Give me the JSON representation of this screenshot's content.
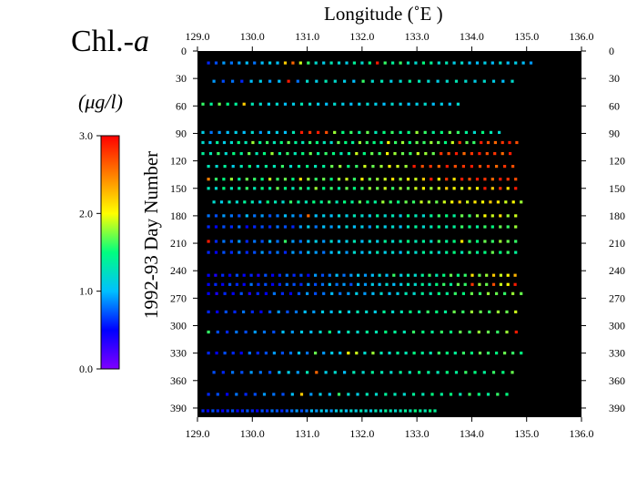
{
  "figure": {
    "title_prefix": "Chl.-",
    "title_suffix": "a",
    "unit_label": "(μg/l)",
    "x_title": "Longitude (˚E )",
    "y_title": "1992-93  Day  Number"
  },
  "colorbar": {
    "ticks": [
      "0.0",
      "1.0",
      "2.0",
      "3.0"
    ],
    "tick_values": [
      0,
      1,
      2,
      3
    ],
    "range": [
      0,
      3
    ],
    "colors": [
      "#8000ff",
      "#0000ff",
      "#00c0ff",
      "#00ff80",
      "#ffff00",
      "#ff8000",
      "#ff0000"
    ]
  },
  "chart_data": {
    "type": "scatter",
    "title": "Chl.-a",
    "xlabel": "Longitude (˚E )",
    "ylabel": "1992-93  Day  Number",
    "colorbar_label": "(μg/l)",
    "xlim": [
      129.0,
      136.0
    ],
    "ylim": [
      0,
      400
    ],
    "y_inverted": true,
    "plot_background": "#000000",
    "grid": false,
    "x_ticks": [
      "129.0",
      "130.0",
      "131.0",
      "132.0",
      "133.0",
      "134.0",
      "135.0",
      "136.0"
    ],
    "x_tick_values": [
      129,
      130,
      131,
      132,
      133,
      134,
      135,
      136
    ],
    "y_ticks": [
      "0",
      "30",
      "60",
      "90",
      "120",
      "150",
      "180",
      "210",
      "240",
      "270",
      "300",
      "330",
      "360",
      "390"
    ],
    "y_tick_values": [
      0,
      30,
      60,
      90,
      120,
      150,
      180,
      210,
      240,
      270,
      300,
      330,
      360,
      390
    ],
    "color_scale": {
      "min": 0.0,
      "max": 3.0
    },
    "cruises": [
      {
        "day": 13,
        "lon_start": 129.2,
        "lon_end": 135.1,
        "lon_step": 0.14,
        "values": [
          0.6,
          0.7,
          0.9,
          0.8,
          0.9,
          1.0,
          0.8,
          1.0,
          1.1,
          1.0,
          2.2,
          2.6,
          1.9,
          1.6,
          1.2,
          1.1,
          1.3,
          1.2,
          1.1,
          1.4,
          1.2,
          1.5,
          2.9,
          1.6,
          1.4,
          1.6,
          1.3,
          1.2,
          1.5,
          1.4,
          1.2,
          1.3,
          1.1,
          1.2,
          1.0,
          1.0,
          1.1,
          1.0,
          1.2,
          1.0,
          1.1,
          1.0,
          0.9
        ]
      },
      {
        "day": 33,
        "lon_start": 129.3,
        "lon_end": 134.9,
        "lon_step": 0.17,
        "values": [
          0.9,
          0.7,
          0.8,
          0.6,
          1.0,
          1.1,
          0.9,
          1.0,
          2.9,
          0.8,
          1.2,
          1.1,
          1.3,
          1.2,
          1.1,
          1.0,
          1.6,
          1.2,
          1.3,
          1.1,
          1.2,
          1.4,
          1.3,
          1.2,
          1.1,
          1.2,
          1.3,
          1.2,
          1.1,
          1.2,
          1.1,
          1.0,
          1.2
        ]
      },
      {
        "day": 58,
        "lon_start": 129.1,
        "lon_end": 133.8,
        "lon_step": 0.15,
        "values": [
          1.6,
          1.4,
          1.7,
          1.5,
          1.4,
          2.2,
          1.3,
          1.2,
          1.1,
          1.2,
          1.0,
          1.1,
          1.3,
          1.2,
          1.1,
          1.0,
          1.2,
          1.1,
          1.0,
          1.1,
          1.2,
          1.1,
          1.0,
          1.2,
          1.1,
          1.0,
          1.1,
          1.2,
          1.0,
          1.1,
          1.0,
          1.2
        ]
      },
      {
        "day": 89,
        "lon_start": 129.1,
        "lon_end": 134.5,
        "lon_step": 0.15,
        "values": [
          1.1,
          0.8,
          0.9,
          1.0,
          1.1,
          1.0,
          1.2,
          0.9,
          1.0,
          1.1,
          1.0,
          1.3,
          2.9,
          2.8,
          2.9,
          2.7,
          1.8,
          1.5,
          1.6,
          1.4,
          1.7,
          1.3,
          1.5,
          1.6,
          1.4,
          1.5,
          1.8,
          1.6,
          1.4,
          1.5,
          1.7,
          1.6,
          1.4,
          1.2,
          1.5,
          1.3,
          1.2
        ]
      },
      {
        "day": 100,
        "lon_start": 129.1,
        "lon_end": 134.9,
        "lon_step": 0.13,
        "values": [
          1.2,
          1.0,
          1.4,
          1.1,
          1.2,
          1.5,
          1.3,
          1.8,
          1.4,
          1.6,
          1.3,
          1.5,
          1.7,
          1.4,
          1.3,
          1.6,
          1.5,
          1.3,
          1.2,
          1.7,
          1.5,
          1.4,
          1.8,
          1.6,
          1.5,
          1.4,
          2.0,
          1.6,
          1.8,
          1.5,
          1.7,
          1.6,
          1.8,
          1.7,
          1.5,
          1.9,
          2.8,
          1.7,
          1.6,
          2.9,
          2.7,
          2.6,
          2.8,
          2.9,
          2.7,
          2.8
        ]
      },
      {
        "day": 112,
        "lon_start": 129.1,
        "lon_end": 134.8,
        "lon_step": 0.14,
        "values": [
          1.4,
          1.3,
          1.6,
          1.2,
          1.5,
          1.4,
          1.7,
          1.3,
          1.5,
          1.8,
          1.4,
          1.6,
          1.3,
          1.5,
          1.7,
          1.4,
          1.6,
          1.5,
          1.3,
          1.4,
          1.9,
          1.5,
          1.7,
          1.6,
          2.0,
          1.8,
          1.7,
          1.6,
          1.9,
          1.8,
          1.7,
          2.8,
          2.7,
          2.9,
          2.6,
          2.8,
          2.9,
          2.7,
          2.8,
          2.6,
          2.9,
          2.7
        ]
      },
      {
        "day": 126,
        "lon_start": 129.2,
        "lon_end": 134.9,
        "lon_step": 0.15,
        "values": [
          1.3,
          1.2,
          1.4,
          1.1,
          1.3,
          1.5,
          1.2,
          1.4,
          1.3,
          1.6,
          1.2,
          1.4,
          1.5,
          1.3,
          1.4,
          1.7,
          1.8,
          1.5,
          1.6,
          1.9,
          1.7,
          1.8,
          2.0,
          1.9,
          1.8,
          2.9,
          2.7,
          2.8,
          2.6,
          2.9,
          2.7,
          2.8,
          2.9,
          2.7,
          2.8,
          2.6,
          2.8,
          2.7
        ]
      },
      {
        "day": 140,
        "lon_start": 129.2,
        "lon_end": 134.9,
        "lon_step": 0.14,
        "values": [
          2.5,
          1.6,
          1.5,
          1.8,
          1.4,
          1.7,
          1.6,
          1.5,
          1.9,
          1.6,
          1.7,
          1.5,
          2.1,
          1.8,
          1.6,
          1.7,
          1.5,
          1.8,
          1.9,
          1.6,
          2.0,
          1.7,
          1.8,
          1.9,
          2.1,
          1.8,
          2.0,
          1.9,
          2.2,
          2.9,
          2.0,
          2.8,
          2.1,
          2.9,
          2.7,
          2.9,
          2.8,
          2.6,
          2.9,
          2.8,
          2.7,
          2.9
        ]
      },
      {
        "day": 150,
        "lon_start": 129.2,
        "lon_end": 134.9,
        "lon_step": 0.14,
        "values": [
          1.3,
          1.2,
          1.5,
          1.3,
          1.4,
          1.6,
          1.3,
          1.5,
          1.4,
          1.7,
          1.5,
          1.3,
          1.6,
          1.4,
          1.8,
          1.5,
          1.6,
          1.4,
          1.7,
          1.5,
          1.6,
          1.8,
          1.7,
          1.9,
          1.6,
          1.8,
          1.7,
          1.9,
          2.0,
          1.8,
          1.9,
          2.2,
          2.0,
          1.9,
          2.1,
          2.0,
          2.9,
          2.2,
          2.8,
          2.1,
          2.9,
          2.7
        ]
      },
      {
        "day": 165,
        "lon_start": 129.3,
        "lon_end": 134.9,
        "lon_step": 0.14,
        "values": [
          1.2,
          1.1,
          1.3,
          1.2,
          1.4,
          1.3,
          1.1,
          1.5,
          1.3,
          1.2,
          1.6,
          1.4,
          1.3,
          1.5,
          1.4,
          1.6,
          1.3,
          1.5,
          1.4,
          1.7,
          1.5,
          1.4,
          1.8,
          1.6,
          1.5,
          1.7,
          1.6,
          1.9,
          1.8,
          1.7,
          1.9,
          2.0,
          2.2,
          1.9,
          2.1,
          2.0,
          2.2,
          2.1,
          1.9,
          2.0,
          1.8
        ]
      },
      {
        "day": 180,
        "lon_start": 129.2,
        "lon_end": 134.9,
        "lon_step": 0.14,
        "values": [
          0.8,
          0.7,
          0.9,
          0.8,
          0.7,
          1.0,
          0.8,
          0.9,
          0.7,
          0.8,
          1.0,
          0.9,
          0.8,
          2.6,
          1.0,
          1.1,
          1.0,
          1.2,
          1.1,
          1.3,
          1.2,
          1.1,
          1.4,
          1.2,
          1.3,
          1.1,
          1.5,
          1.3,
          1.2,
          1.4,
          1.6,
          1.5,
          1.4,
          1.7,
          1.6,
          1.8,
          2.0,
          1.9,
          2.1,
          1.8,
          1.9,
          2.0
        ]
      },
      {
        "day": 192,
        "lon_start": 129.2,
        "lon_end": 134.9,
        "lon_step": 0.14,
        "values": [
          0.6,
          0.5,
          0.7,
          0.6,
          0.8,
          0.5,
          0.6,
          0.7,
          0.6,
          0.8,
          0.7,
          0.6,
          0.9,
          1.1,
          0.8,
          1.0,
          0.9,
          1.0,
          1.2,
          1.0,
          1.1,
          0.9,
          1.3,
          1.1,
          1.2,
          1.0,
          1.3,
          1.4,
          1.2,
          1.3,
          1.5,
          1.3,
          1.4,
          1.6,
          1.5,
          1.4,
          1.6,
          1.5,
          1.7,
          1.6,
          1.8,
          1.6
        ]
      },
      {
        "day": 208,
        "lon_start": 129.2,
        "lon_end": 134.9,
        "lon_step": 0.14,
        "values": [
          2.9,
          0.6,
          0.8,
          0.7,
          0.9,
          0.6,
          0.8,
          0.7,
          1.0,
          0.8,
          1.6,
          0.9,
          0.8,
          1.0,
          1.1,
          0.9,
          1.2,
          1.0,
          1.1,
          1.3,
          1.0,
          1.2,
          1.1,
          1.4,
          1.2,
          1.3,
          1.5,
          1.3,
          1.4,
          1.2,
          1.6,
          1.4,
          1.5,
          2.1,
          1.6,
          1.5,
          1.7,
          1.6,
          1.8,
          1.7,
          1.6,
          1.8
        ]
      },
      {
        "day": 220,
        "lon_start": 129.2,
        "lon_end": 134.9,
        "lon_step": 0.14,
        "values": [
          0.6,
          0.5,
          0.7,
          0.6,
          0.8,
          0.6,
          0.7,
          0.9,
          0.7,
          0.8,
          0.6,
          0.9,
          0.8,
          1.0,
          0.9,
          0.8,
          1.0,
          1.1,
          0.9,
          1.2,
          1.0,
          1.1,
          1.3,
          1.1,
          1.2,
          1.0,
          1.3,
          1.2,
          1.4,
          1.3,
          1.2,
          1.4,
          1.5,
          1.3,
          1.6,
          1.4,
          1.5,
          1.7,
          1.5,
          1.6,
          1.4,
          1.6
        ]
      },
      {
        "day": 245,
        "lon_start": 129.2,
        "lon_end": 134.9,
        "lon_step": 0.13,
        "values": [
          0.5,
          0.4,
          0.6,
          0.5,
          0.7,
          0.5,
          0.6,
          0.4,
          0.7,
          0.5,
          0.6,
          0.8,
          0.6,
          0.7,
          0.5,
          0.9,
          0.7,
          0.8,
          1.0,
          0.8,
          0.9,
          1.1,
          0.9,
          1.0,
          1.2,
          1.0,
          1.6,
          1.1,
          1.3,
          1.2,
          1.4,
          1.6,
          1.3,
          1.5,
          1.7,
          1.5,
          1.6,
          2.1,
          1.7,
          1.8,
          2.2,
          1.9,
          2.0,
          2.3,
          2.1,
          1.9
        ]
      },
      {
        "day": 255,
        "lon_start": 129.2,
        "lon_end": 134.9,
        "lon_step": 0.13,
        "values": [
          0.5,
          0.6,
          0.5,
          0.7,
          0.6,
          0.5,
          0.8,
          0.6,
          0.7,
          0.5,
          0.6,
          0.8,
          0.7,
          0.6,
          0.9,
          0.7,
          0.8,
          1.0,
          0.8,
          0.9,
          0.7,
          1.0,
          0.9,
          1.1,
          1.0,
          1.2,
          1.0,
          1.1,
          1.3,
          1.2,
          1.4,
          1.3,
          1.5,
          1.6,
          1.4,
          1.7,
          1.6,
          2.8,
          1.8,
          1.7,
          2.7,
          1.9,
          2.0,
          2.9,
          1.9,
          2.1
        ]
      },
      {
        "day": 265,
        "lon_start": 129.2,
        "lon_end": 134.9,
        "lon_step": 0.15,
        "values": [
          0.5,
          0.4,
          0.6,
          0.5,
          0.7,
          0.4,
          0.6,
          0.5,
          0.8,
          0.6,
          0.5,
          0.7,
          0.9,
          0.7,
          0.8,
          1.0,
          0.8,
          0.9,
          1.1,
          0.9,
          1.0,
          1.2,
          1.0,
          1.1,
          1.3,
          1.2,
          1.4,
          1.3,
          1.5,
          1.4,
          1.6,
          1.5,
          1.7,
          1.6,
          1.8,
          1.7,
          1.6,
          1.8,
          1.7
        ]
      },
      {
        "day": 285,
        "lon_start": 129.2,
        "lon_end": 134.9,
        "lon_step": 0.16,
        "values": [
          0.6,
          0.5,
          0.7,
          0.6,
          0.8,
          0.6,
          0.5,
          0.7,
          0.9,
          0.7,
          0.8,
          1.0,
          0.9,
          1.1,
          1.0,
          1.2,
          1.1,
          1.3,
          1.2,
          1.1,
          1.4,
          1.2,
          1.3,
          1.5,
          1.4,
          1.6,
          1.5,
          1.4,
          1.7,
          1.6,
          1.8,
          1.7,
          1.6,
          1.8,
          1.7,
          1.9,
          1.8
        ]
      },
      {
        "day": 307,
        "lon_start": 129.2,
        "lon_end": 134.9,
        "lon_step": 0.17,
        "values": [
          1.6,
          0.7,
          0.6,
          0.8,
          0.7,
          0.9,
          0.8,
          0.7,
          1.0,
          0.9,
          1.1,
          1.0,
          1.2,
          1.5,
          1.1,
          1.3,
          1.2,
          1.4,
          1.3,
          1.5,
          1.4,
          1.3,
          1.6,
          1.5,
          1.4,
          1.6,
          1.5,
          1.7,
          1.6,
          1.8,
          1.7,
          1.6,
          1.8,
          2.9,
          1.7
        ]
      },
      {
        "day": 330,
        "lon_start": 129.2,
        "lon_end": 134.9,
        "lon_step": 0.15,
        "values": [
          0.6,
          0.5,
          0.7,
          0.6,
          0.5,
          0.8,
          0.6,
          0.7,
          0.9,
          0.7,
          0.8,
          1.0,
          0.8,
          1.7,
          0.9,
          1.1,
          1.0,
          2.0,
          1.9,
          1.2,
          1.8,
          1.3,
          1.2,
          1.4,
          1.3,
          1.5,
          1.4,
          1.3,
          1.6,
          1.5,
          1.4,
          1.6,
          1.5,
          1.7,
          1.6,
          1.5,
          1.7,
          1.6,
          1.5
        ]
      },
      {
        "day": 351,
        "lon_start": 129.3,
        "lon_end": 134.9,
        "lon_step": 0.17,
        "values": [
          0.7,
          0.6,
          0.8,
          0.7,
          0.9,
          0.8,
          0.7,
          1.0,
          1.1,
          0.9,
          1.3,
          2.6,
          1.1,
          1.2,
          1.0,
          1.3,
          1.2,
          1.4,
          1.3,
          1.2,
          1.4,
          1.3,
          1.5,
          1.4,
          1.3,
          1.5,
          1.4,
          1.6,
          1.5,
          1.4,
          1.6,
          1.5,
          1.7,
          1.6
        ]
      },
      {
        "day": 375,
        "lon_start": 129.2,
        "lon_end": 134.8,
        "lon_step": 0.17,
        "values": [
          0.6,
          0.7,
          0.5,
          0.8,
          0.6,
          0.7,
          0.9,
          0.8,
          0.7,
          1.0,
          2.2,
          0.9,
          1.1,
          1.0,
          1.6,
          1.2,
          1.1,
          1.3,
          1.2,
          1.4,
          1.3,
          1.2,
          1.4,
          1.3,
          1.5,
          1.4,
          1.5,
          1.3,
          1.6,
          1.5,
          1.4,
          1.6,
          1.5,
          1.7
        ]
      },
      {
        "day": 393,
        "lon_start": 129.1,
        "lon_end": 133.4,
        "lon_step": 0.09,
        "values": [
          0.6,
          0.5,
          0.7,
          0.6,
          0.5,
          0.6,
          0.7,
          0.5,
          0.6,
          0.7,
          0.6,
          0.5,
          0.7,
          0.6,
          0.8,
          0.7,
          0.6,
          0.7,
          0.8,
          0.9,
          0.7,
          0.8,
          1.0,
          0.9,
          1.1,
          1.0,
          0.9,
          1.1,
          1.2,
          1.0,
          1.2,
          1.1,
          1.3,
          1.2,
          1.1,
          1.3,
          1.2,
          1.4,
          1.3,
          1.2,
          1.3,
          1.4,
          1.3,
          1.5,
          1.4,
          1.3,
          1.5,
          1.4
        ]
      }
    ]
  }
}
